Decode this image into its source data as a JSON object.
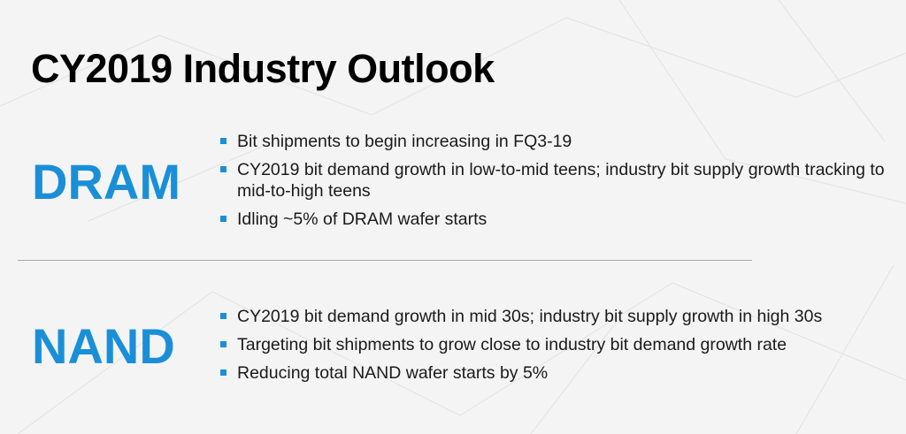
{
  "colors": {
    "accent": "#1a8fd8",
    "title": "#000000",
    "body_text": "#1a1a1a"
  },
  "title": "CY2019 Industry Outlook",
  "sections": [
    {
      "heading": "DRAM",
      "bullets": [
        "Bit shipments to begin increasing in FQ3-19",
        "CY2019 bit demand growth in low-to-mid teens; industry bit supply growth tracking to mid-to-high teens",
        "Idling ~5% of DRAM wafer starts"
      ]
    },
    {
      "heading": "NAND",
      "bullets": [
        "CY2019 bit demand growth in mid 30s; industry bit supply growth in high 30s",
        "Targeting bit shipments to grow close to industry bit demand growth rate",
        "Reducing total NAND wafer starts by 5%"
      ]
    }
  ]
}
